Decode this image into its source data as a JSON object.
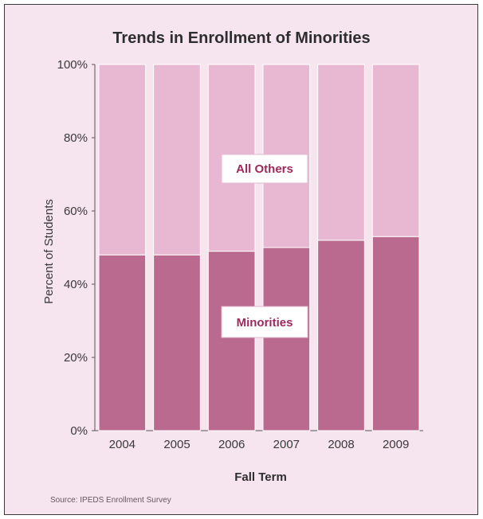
{
  "chart_data": {
    "type": "bar",
    "stacked": true,
    "title": "Trends in Enrollment of Minorities",
    "xlabel": "Fall Term",
    "ylabel": "Percent of Students",
    "categories": [
      "2004",
      "2005",
      "2006",
      "2007",
      "2008",
      "2009"
    ],
    "series": [
      {
        "name": "Minorities",
        "values": [
          48,
          48,
          49,
          50,
          52,
          53
        ],
        "color": "#b96a8e"
      },
      {
        "name": "All Others",
        "values": [
          52,
          52,
          51,
          50,
          48,
          47
        ],
        "color": "#e8b8d3"
      }
    ],
    "ylim": [
      0,
      100
    ],
    "yticks": [
      "0%",
      "20%",
      "40%",
      "60%",
      "80%",
      "100%"
    ],
    "annotations": [
      {
        "text": "All Others",
        "color": "#9b2a5c"
      },
      {
        "text": "Minorities",
        "color": "#9b2a5c"
      }
    ],
    "source": "Source: IPEDS Enrollment Survey",
    "grid": false,
    "legend": "none"
  },
  "colors": {
    "background": "#f6e4ee",
    "bar_border": "#ffffff",
    "axis": "#555555"
  }
}
